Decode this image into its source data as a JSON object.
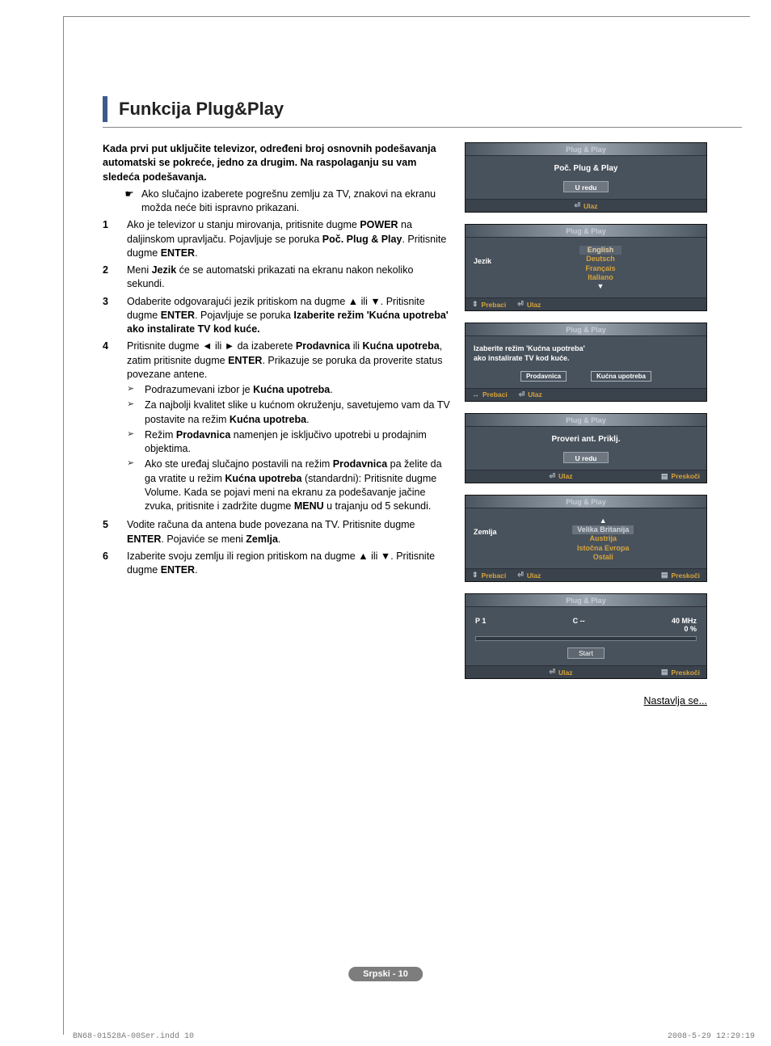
{
  "title": "Funkcija Plug&Play",
  "intro": "Kada prvi put uključite televizor, određeni broj osnovnih podešavanja automatski se pokreće, jedno za drugim. Na raspolaganju su vam sledeća podešavanja.",
  "note_icon": "☛",
  "note": "Ako slučajno izaberete pogrešnu zemlju za TV, znakovi na ekranu možda neće biti ispravno prikazani.",
  "steps": {
    "s1": {
      "n": "1",
      "t": "Ako je televizor u stanju mirovanja, pritisnite dugme <b>POWER</b> na daljinskom upravljaču. Pojavljuje se poruka <b>Poč. Plug & Play</b>. Pritisnite dugme <b>ENTER</b>."
    },
    "s2": {
      "n": "2",
      "t": "Meni <b>Jezik</b> će se automatski prikazati na ekranu nakon nekoliko sekundi."
    },
    "s3": {
      "n": "3",
      "t": "Odaberite odgovarajući jezik pritiskom na dugme ▲ ili ▼. Pritisnite dugme <b>ENTER</b>. Pojavljuje se poruka <b>Izaberite režim 'Kućna upotreba' ako instalirate TV kod kuće.</b>"
    },
    "s4": {
      "n": "4",
      "t": "Pritisnite dugme ◄ ili ► da izaberete <b>Prodavnica</b> ili <b>Kućna upotreba</b>, zatim pritisnite dugme <b>ENTER</b>. Prikazuje se poruka da proverite status povezane antene.",
      "subs": [
        "Podrazumevani izbor je <b>Kućna upotreba</b>.",
        "Za najbolji kvalitet slike u kućnom okruženju, savetujemo vam da TV postavite na režim <b>Kućna upotreba</b>.",
        "Režim <b>Prodavnica</b> namenjen je isključivo upotrebi u prodajnim objektima.",
        "Ako ste uređaj slučajno postavili na režim <b>Prodavnica</b> pa želite da ga vratite u režim <b>Kućna upotreba</b> (standardni): Pritisnite dugme Volume. Kada se pojavi meni na ekranu za podešavanje jačine zvuka, pritisnite i zadržite dugme <b>MENU</b> u trajanju od 5 sekundi."
      ]
    },
    "s5": {
      "n": "5",
      "t": "Vodite računa da antena bude povezana na TV. Pritisnite dugme <b>ENTER</b>. Pojaviće se meni <b>Zemlja</b>."
    },
    "s6": {
      "n": "6",
      "t": "Izaberite svoju zemlju ili region pritiskom na dugme ▲ ili ▼. Pritisnite dugme <b>ENTER</b>."
    }
  },
  "osd_common": {
    "title": "Plug & Play",
    "ulaz": "Ulaz",
    "prebaci": "Prebaci",
    "preskoci": "Preskoči",
    "enter_glyph": "⏎",
    "updown_glyph": "⇕",
    "lr_glyph": "↔",
    "menu_glyph": "▤"
  },
  "osd1": {
    "msg": "Poč. Plug & Play",
    "btn": "U redu"
  },
  "osd2": {
    "label": "Jezik",
    "items": {
      "i0": "English",
      "i1": "Deutsch",
      "i2": "Français",
      "i3": "Italiano"
    },
    "arrow": "▼"
  },
  "osd3": {
    "l1": "Izaberite režim 'Kućna upotreba'",
    "l2": "ako instalirate TV kod kuće.",
    "b1": "Prodavnica",
    "b2": "Kućna upotreba"
  },
  "osd4": {
    "msg": "Proveri ant. Priklj.",
    "btn": "U redu"
  },
  "osd5": {
    "label": "Zemlja",
    "arrow": "▲",
    "items": {
      "i0": "Velika Britanija",
      "i1": "Austrija",
      "i2": "Istočna Evropa",
      "i3": "Ostali"
    }
  },
  "osd6": {
    "p": "P   1",
    "c": "C    --",
    "mhz": "40 MHz",
    "pct": "0  %",
    "start": "Start"
  },
  "continued": "Nastavlja se...",
  "footer_lang": "Srpski - 10",
  "print": {
    "file": "BN68-01528A-00Ser.indd   10",
    "ts": "2008-5-29   12:29:19"
  },
  "arrow_bullet": "➢"
}
